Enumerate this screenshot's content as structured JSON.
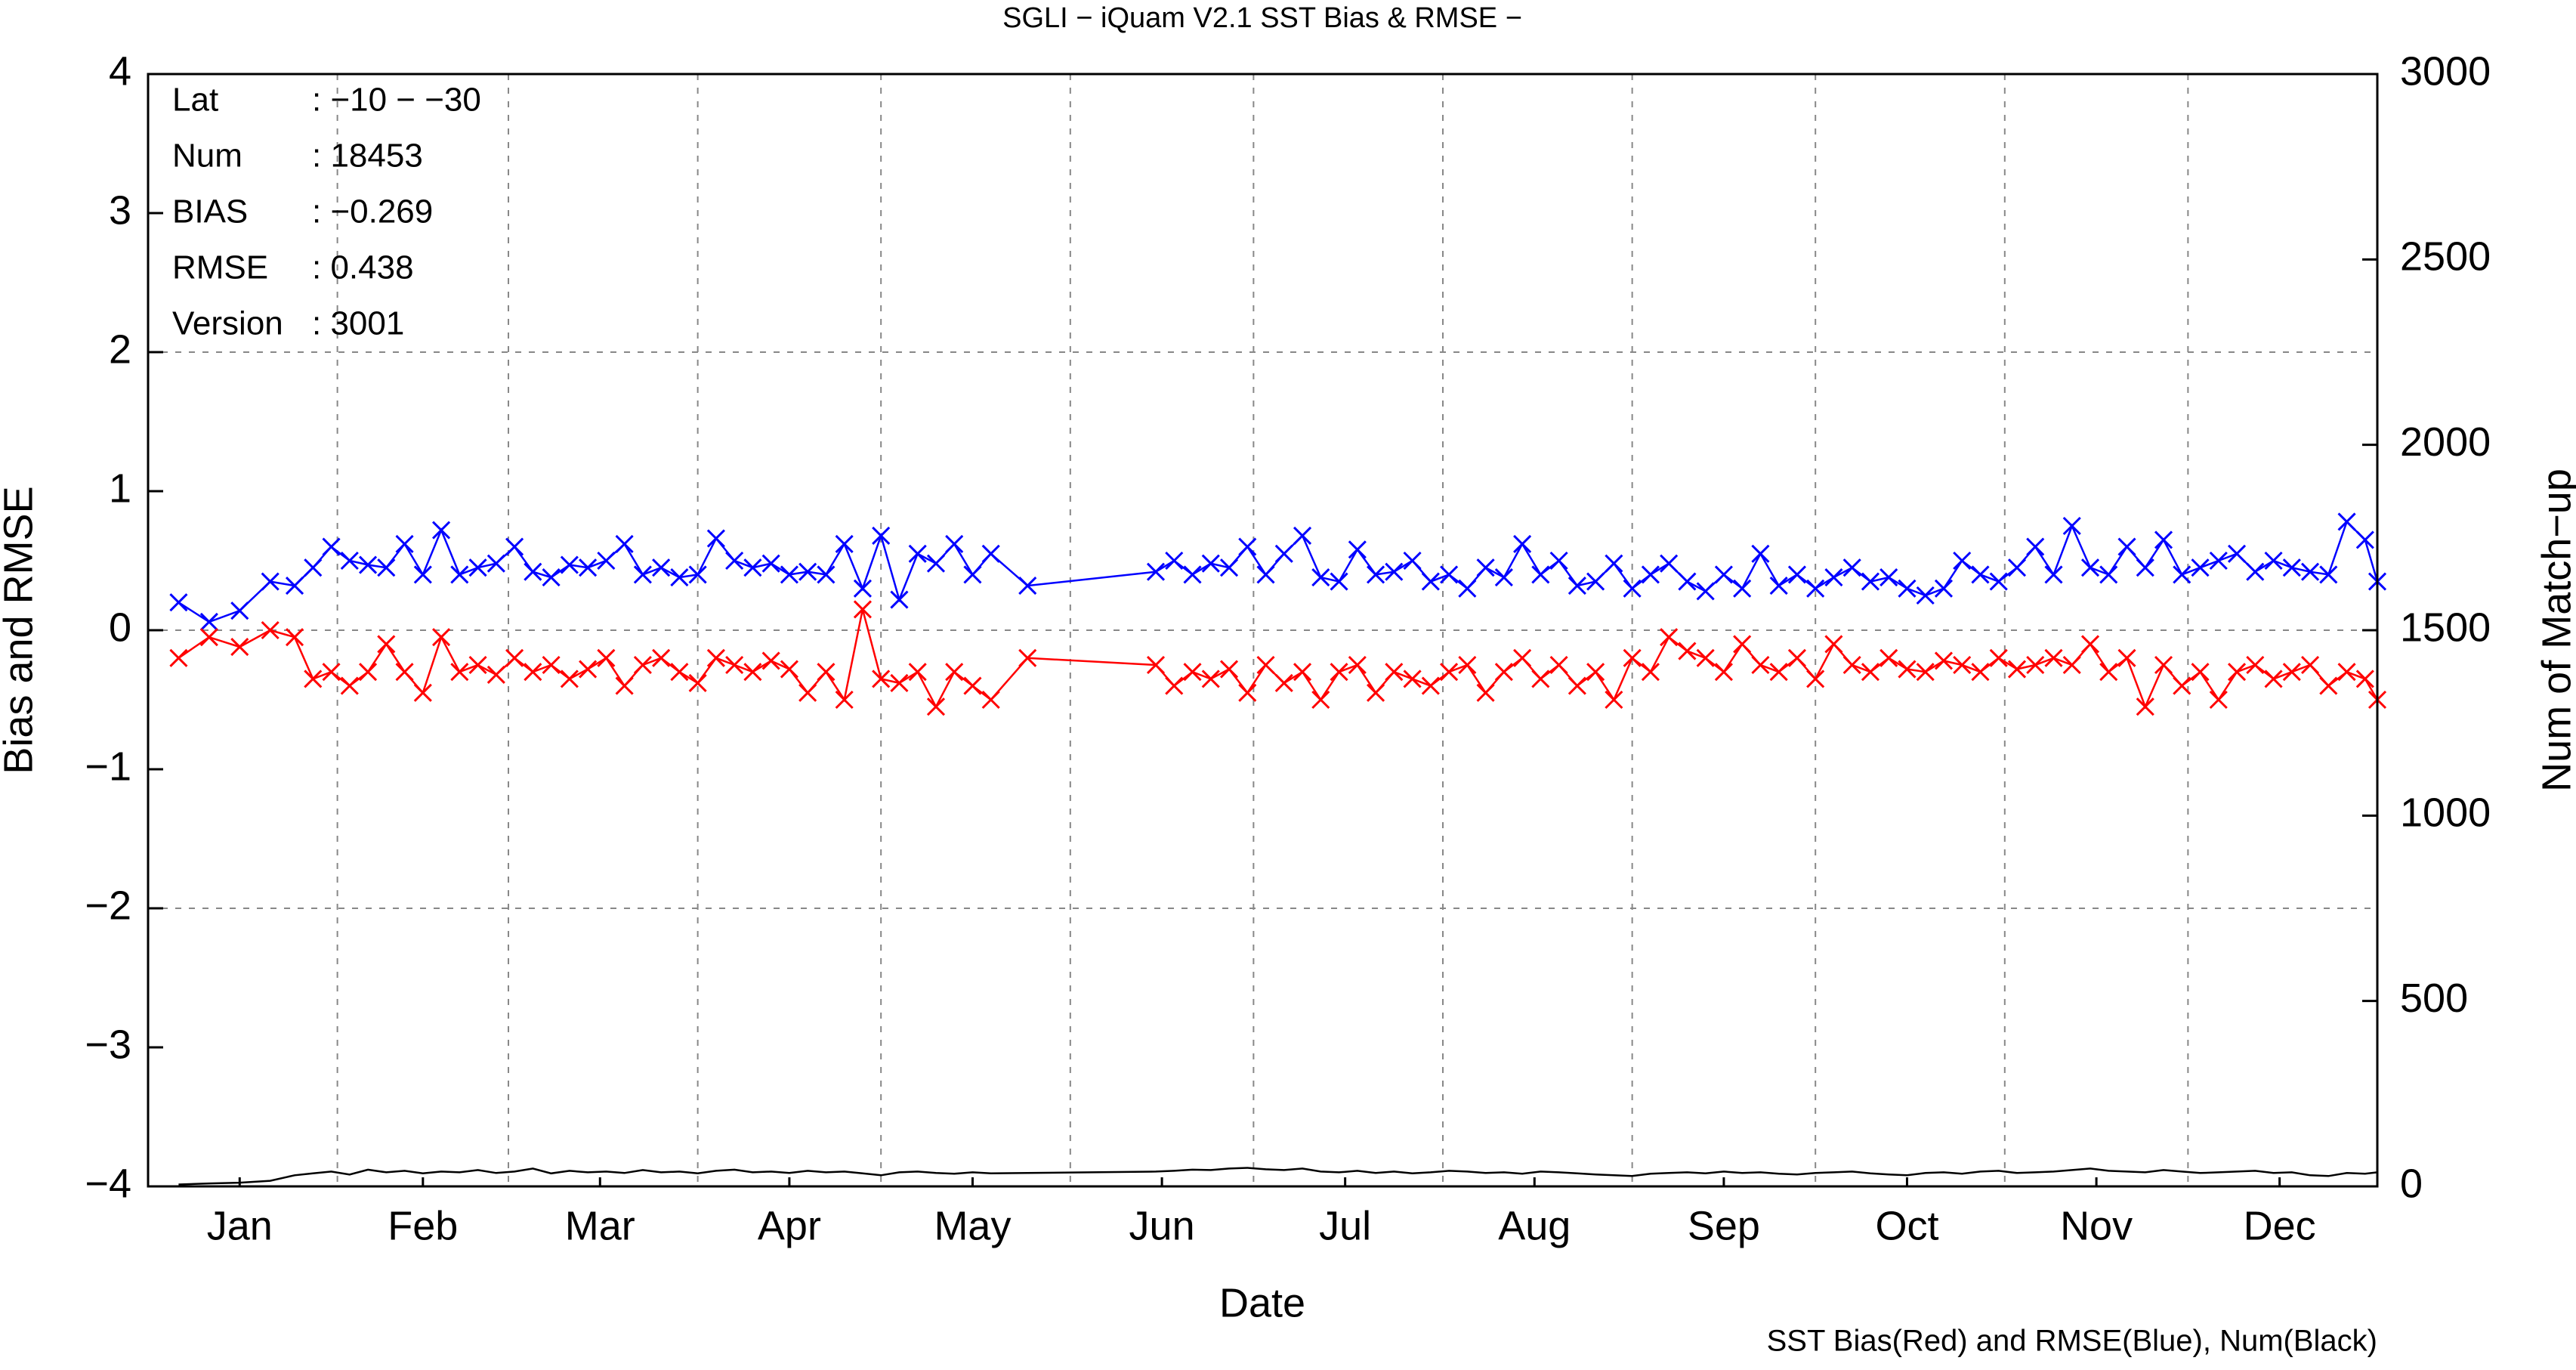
{
  "chart_data": {
    "type": "line",
    "title": "SGLI − iQuam V2.1 SST Bias & RMSE  −",
    "xlabel": "Date",
    "ylabel": "Bias and RMSE",
    "y2label": "Num of Match−up",
    "footnote": "SST Bias(Red) and RMSE(Blue), Num(Black)",
    "info": [
      {
        "key": "Lat",
        "value": ": −10 − −30"
      },
      {
        "key": "Num",
        "value": ": 18453"
      },
      {
        "key": "BIAS",
        "value": ": −0.269"
      },
      {
        "key": "RMSE",
        "value": ": 0.438"
      },
      {
        "key": "Version",
        "value": ": 3001"
      }
    ],
    "xlim": [
      0,
      365
    ],
    "xticks": [
      {
        "value": 15,
        "label": "Jan"
      },
      {
        "value": 45,
        "label": "Feb"
      },
      {
        "value": 74,
        "label": "Mar"
      },
      {
        "value": 105,
        "label": "Apr"
      },
      {
        "value": 135,
        "label": "May"
      },
      {
        "value": 166,
        "label": "Jun"
      },
      {
        "value": 196,
        "label": "Jul"
      },
      {
        "value": 227,
        "label": "Aug"
      },
      {
        "value": 258,
        "label": "Sep"
      },
      {
        "value": 288,
        "label": "Oct"
      },
      {
        "value": 319,
        "label": "Nov"
      },
      {
        "value": 349,
        "label": "Dec"
      }
    ],
    "xgrid": [
      31,
      59,
      90,
      120,
      151,
      181,
      212,
      243,
      273,
      304,
      334
    ],
    "ylim": [
      -4,
      4
    ],
    "yticks": [
      {
        "value": -4,
        "label": "−4"
      },
      {
        "value": -3,
        "label": "−3"
      },
      {
        "value": -2,
        "label": "−2"
      },
      {
        "value": -1,
        "label": "−1"
      },
      0,
      1,
      2,
      3,
      4
    ],
    "ygrid": [
      -2,
      0,
      2
    ],
    "y2lim": [
      0,
      3000
    ],
    "y2ticks": [
      0,
      500,
      1000,
      1500,
      2000,
      2500,
      3000
    ],
    "grid": true,
    "x": [
      5,
      10,
      15,
      20,
      24,
      27,
      30,
      33,
      36,
      39,
      42,
      45,
      48,
      51,
      54,
      57,
      60,
      63,
      66,
      69,
      72,
      75,
      78,
      81,
      84,
      87,
      90,
      93,
      96,
      99,
      102,
      105,
      108,
      111,
      114,
      117,
      120,
      123,
      126,
      129,
      132,
      135,
      138,
      144,
      165,
      168,
      171,
      174,
      177,
      180,
      183,
      186,
      189,
      192,
      195,
      198,
      201,
      204,
      207,
      210,
      213,
      216,
      219,
      222,
      225,
      228,
      231,
      234,
      237,
      240,
      243,
      246,
      249,
      252,
      255,
      258,
      261,
      264,
      267,
      270,
      273,
      276,
      279,
      282,
      285,
      288,
      291,
      294,
      297,
      300,
      303,
      306,
      309,
      312,
      315,
      318,
      321,
      324,
      327,
      330,
      333,
      336,
      339,
      342,
      345,
      348,
      351,
      354,
      357,
      360,
      363,
      365
    ],
    "series": [
      {
        "name": "RMSE",
        "color": "#0000ff",
        "marker": "x",
        "values": [
          0.2,
          0.06,
          0.14,
          0.35,
          0.32,
          0.45,
          0.6,
          0.5,
          0.47,
          0.45,
          0.62,
          0.4,
          0.72,
          0.4,
          0.45,
          0.48,
          0.6,
          0.42,
          0.38,
          0.47,
          0.45,
          0.5,
          0.62,
          0.4,
          0.45,
          0.38,
          0.4,
          0.66,
          0.5,
          0.45,
          0.48,
          0.4,
          0.42,
          0.4,
          0.62,
          0.3,
          0.68,
          0.22,
          0.55,
          0.48,
          0.62,
          0.4,
          0.55,
          0.32,
          0.42,
          0.5,
          0.4,
          0.48,
          0.45,
          0.6,
          0.4,
          0.55,
          0.68,
          0.38,
          0.35,
          0.58,
          0.4,
          0.42,
          0.5,
          0.35,
          0.4,
          0.3,
          0.45,
          0.38,
          0.62,
          0.4,
          0.5,
          0.32,
          0.35,
          0.48,
          0.3,
          0.4,
          0.48,
          0.35,
          0.28,
          0.4,
          0.3,
          0.55,
          0.32,
          0.4,
          0.3,
          0.38,
          0.45,
          0.35,
          0.38,
          0.3,
          0.25,
          0.3,
          0.5,
          0.4,
          0.35,
          0.45,
          0.6,
          0.4,
          0.75,
          0.45,
          0.4,
          0.6,
          0.45,
          0.65,
          0.4,
          0.45,
          0.5,
          0.55,
          0.42,
          0.5,
          0.45,
          0.42,
          0.4,
          0.78,
          0.65,
          0.35
        ]
      },
      {
        "name": "Bias",
        "color": "#ff0000",
        "marker": "x",
        "values": [
          -0.2,
          -0.05,
          -0.12,
          0,
          -0.05,
          -0.35,
          -0.3,
          -0.4,
          -0.3,
          -0.1,
          -0.3,
          -0.45,
          -0.05,
          -0.3,
          -0.25,
          -0.32,
          -0.2,
          -0.3,
          -0.25,
          -0.35,
          -0.28,
          -0.2,
          -0.4,
          -0.25,
          -0.2,
          -0.3,
          -0.38,
          -0.2,
          -0.25,
          -0.3,
          -0.22,
          -0.28,
          -0.45,
          -0.3,
          -0.5,
          0.15,
          -0.35,
          -0.38,
          -0.3,
          -0.55,
          -0.3,
          -0.4,
          -0.5,
          -0.2,
          -0.25,
          -0.4,
          -0.3,
          -0.35,
          -0.28,
          -0.45,
          -0.25,
          -0.38,
          -0.3,
          -0.5,
          -0.3,
          -0.25,
          -0.45,
          -0.3,
          -0.35,
          -0.4,
          -0.3,
          -0.25,
          -0.45,
          -0.3,
          -0.2,
          -0.35,
          -0.25,
          -0.4,
          -0.3,
          -0.5,
          -0.2,
          -0.3,
          -0.05,
          -0.15,
          -0.2,
          -0.3,
          -0.1,
          -0.25,
          -0.3,
          -0.2,
          -0.35,
          -0.1,
          -0.25,
          -0.3,
          -0.2,
          -0.28,
          -0.3,
          -0.22,
          -0.25,
          -0.3,
          -0.2,
          -0.28,
          -0.25,
          -0.2,
          -0.25,
          -0.1,
          -0.3,
          -0.2,
          -0.55,
          -0.25,
          -0.4,
          -0.3,
          -0.5,
          -0.3,
          -0.25,
          -0.35,
          -0.3,
          -0.25,
          -0.4,
          -0.3,
          -0.35,
          -0.5
        ]
      },
      {
        "name": "Num",
        "color": "#000000",
        "axis": "y2",
        "values": [
          5,
          8,
          10,
          15,
          30,
          35,
          40,
          32,
          45,
          38,
          42,
          35,
          40,
          38,
          44,
          36,
          40,
          48,
          35,
          42,
          38,
          40,
          36,
          44,
          38,
          40,
          35,
          42,
          45,
          38,
          40,
          36,
          42,
          38,
          40,
          35,
          30,
          38,
          40,
          36,
          34,
          38,
          35,
          36,
          40,
          42,
          45,
          44,
          48,
          50,
          46,
          44,
          48,
          40,
          38,
          42,
          36,
          40,
          35,
          38,
          42,
          40,
          36,
          38,
          34,
          40,
          38,
          35,
          32,
          30,
          28,
          34,
          36,
          38,
          35,
          40,
          36,
          38,
          34,
          32,
          36,
          38,
          40,
          35,
          32,
          30,
          36,
          38,
          34,
          40,
          42,
          36,
          38,
          40,
          44,
          48,
          42,
          40,
          38,
          44,
          40,
          36,
          38,
          40,
          42,
          36,
          38,
          30,
          28,
          36,
          34,
          38
        ]
      }
    ]
  }
}
